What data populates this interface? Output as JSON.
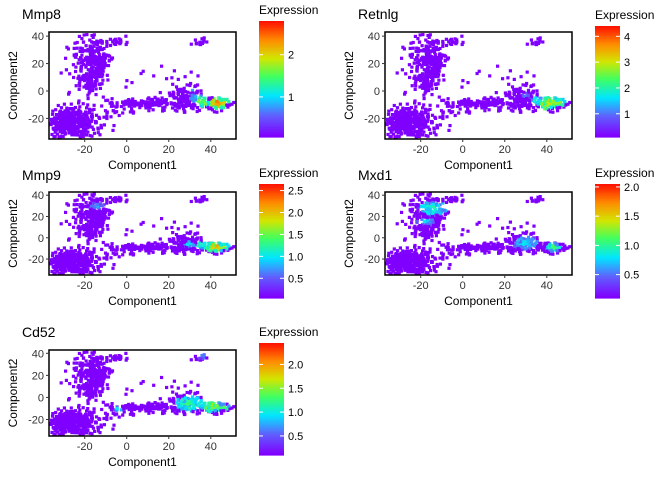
{
  "chart_data": [
    {
      "type": "scatter",
      "title": "Mmp8",
      "xlabel": "Component1",
      "ylabel": "Component2",
      "xlim": [
        -37,
        52
      ],
      "ylim": [
        -35,
        43
      ],
      "xticks": [
        -20,
        0,
        20,
        40
      ],
      "yticks": [
        -20,
        0,
        20,
        40
      ],
      "legend": {
        "title": "Expression",
        "range": [
          0.05,
          2.8
        ],
        "ticks": [
          1,
          2
        ],
        "placement": "right"
      },
      "hotspots": [
        {
          "x": 36,
          "y": -8,
          "r": 3.5,
          "value": 2.2
        },
        {
          "x": 43,
          "y": -9,
          "r": 4.5,
          "value": 2.6
        },
        {
          "x": 47,
          "y": -7,
          "r": 3,
          "value": 2.0
        },
        {
          "x": 33,
          "y": -5,
          "r": 3,
          "value": 1.2
        },
        {
          "x": 30,
          "y": 1,
          "r": 2,
          "value": 1.0
        }
      ],
      "accent_cluster": "none"
    },
    {
      "type": "scatter",
      "title": "Retnlg",
      "xlabel": "Component1",
      "ylabel": "Component2",
      "xlim": [
        -37,
        52
      ],
      "ylim": [
        -35,
        43
      ],
      "xticks": [
        -20,
        0,
        20,
        40
      ],
      "yticks": [
        -20,
        0,
        20,
        40
      ],
      "legend": {
        "title": "Expression",
        "range": [
          0.1,
          4.4
        ],
        "ticks": [
          1,
          2,
          3,
          4
        ],
        "placement": "right"
      },
      "hotspots": [
        {
          "x": 40,
          "y": -9,
          "r": 4.5,
          "value": 3.6
        },
        {
          "x": 45,
          "y": -8,
          "r": 4,
          "value": 3.0
        },
        {
          "x": 35,
          "y": -7,
          "r": 3,
          "value": 2.2
        },
        {
          "x": 33,
          "y": 29,
          "r": 2.5,
          "value": 3.8
        },
        {
          "x": 30,
          "y": -3,
          "r": 2,
          "value": 1.2
        }
      ],
      "accent_cluster": "none"
    },
    {
      "type": "scatter",
      "title": "Mmp9",
      "xlabel": "Component1",
      "ylabel": "Component2",
      "xlim": [
        -37,
        52
      ],
      "ylim": [
        -35,
        43
      ],
      "xticks": [
        -20,
        0,
        20,
        40
      ],
      "yticks": [
        -20,
        0,
        20,
        40
      ],
      "legend": {
        "title": "Expression",
        "range": [
          0.05,
          2.65
        ],
        "ticks": [
          0.5,
          1.0,
          1.5,
          2.0,
          2.5
        ],
        "placement": "right"
      },
      "hotspots": [
        {
          "x": 42,
          "y": -9,
          "r": 4.5,
          "value": 2.3
        },
        {
          "x": 46,
          "y": -8,
          "r": 3,
          "value": 1.9
        },
        {
          "x": 36,
          "y": -7,
          "r": 3,
          "value": 1.6
        },
        {
          "x": 30,
          "y": -6,
          "r": 3,
          "value": 1.1
        },
        {
          "x": -14,
          "y": 30,
          "r": 4,
          "value": 0.8
        },
        {
          "x": 33,
          "y": 32,
          "r": 1.5,
          "value": 1.0
        }
      ],
      "accent_cluster": "none"
    },
    {
      "type": "scatter",
      "title": "Mxd1",
      "xlabel": "Component1",
      "ylabel": "Component2",
      "xlim": [
        -37,
        52
      ],
      "ylim": [
        -35,
        43
      ],
      "xticks": [
        -20,
        0,
        20,
        40
      ],
      "yticks": [
        -20,
        0,
        20,
        40
      ],
      "legend": {
        "title": "Expression",
        "range": [
          0.1,
          2.05
        ],
        "ticks": [
          0.5,
          1.0,
          1.5,
          2.0
        ],
        "placement": "right"
      },
      "hotspots": [
        {
          "x": -14,
          "y": 28,
          "r": 7,
          "value": 1.1
        },
        {
          "x": -18,
          "y": 15,
          "r": 4,
          "value": 0.9
        },
        {
          "x": 30,
          "y": -5,
          "r": 6,
          "value": 0.9
        },
        {
          "x": 43,
          "y": -9,
          "r": 4,
          "value": 1.2
        },
        {
          "x": 35,
          "y": 30,
          "r": 2,
          "value": 1.0
        }
      ],
      "accent_cluster": "none"
    },
    {
      "type": "scatter",
      "title": "Cd52",
      "xlabel": "Component1",
      "ylabel": "Component2",
      "xlim": [
        -37,
        52
      ],
      "ylim": [
        -35,
        43
      ],
      "xticks": [
        -20,
        0,
        20,
        40
      ],
      "yticks": [
        -20,
        0,
        20,
        40
      ],
      "legend": {
        "title": "Expression",
        "range": [
          0.1,
          2.45
        ],
        "ticks": [
          0.5,
          1.0,
          1.5,
          2.0
        ],
        "placement": "right"
      },
      "hotspots": [
        {
          "x": 30,
          "y": -6,
          "r": 7,
          "value": 1.4
        },
        {
          "x": 40,
          "y": -8,
          "r": 5,
          "value": 1.8
        },
        {
          "x": 46,
          "y": -9,
          "r": 3,
          "value": 1.5
        },
        {
          "x": -4,
          "y": -11,
          "r": 2.5,
          "value": 1.2
        },
        {
          "x": 2,
          "y": 10,
          "r": 2,
          "value": 0.9
        },
        {
          "x": 36,
          "y": 37,
          "r": 2,
          "value": 1.0
        }
      ],
      "accent_cluster": "none"
    }
  ]
}
